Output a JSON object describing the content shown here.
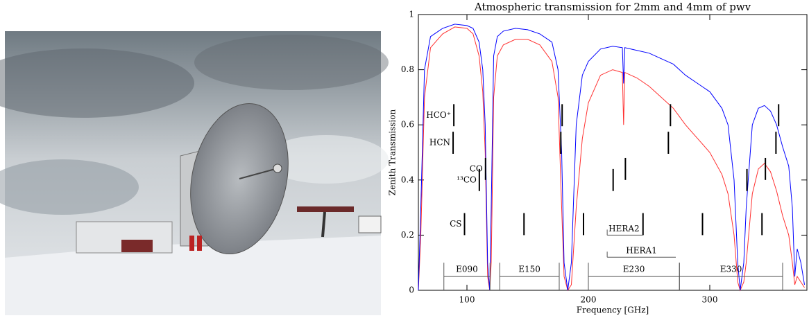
{
  "chart_data": {
    "type": "line",
    "title": "Atmospheric transmission for 2mm and 4mm of pwv",
    "x_label": "Frequency [GHz]",
    "y_label": "Zenith Transmission",
    "x": [
      60,
      62,
      65,
      70,
      80,
      90,
      100,
      105,
      110,
      113,
      115,
      117,
      118.75,
      120,
      122,
      125,
      130,
      140,
      150,
      160,
      170,
      175,
      178,
      180,
      183,
      186,
      190,
      195,
      200,
      210,
      220,
      228,
      229,
      230,
      240,
      250,
      260,
      270,
      280,
      290,
      300,
      310,
      315,
      320,
      323,
      325,
      328,
      330,
      335,
      340,
      345,
      350,
      355,
      360,
      365,
      368,
      370,
      372,
      375,
      378
    ],
    "series": [
      {
        "color": "#0000ff",
        "values": [
          0,
          0.3,
          0.8,
          0.92,
          0.95,
          0.965,
          0.96,
          0.95,
          0.9,
          0.8,
          0.6,
          0.1,
          0,
          0.3,
          0.85,
          0.92,
          0.94,
          0.95,
          0.945,
          0.93,
          0.9,
          0.8,
          0.5,
          0.1,
          0,
          0.1,
          0.6,
          0.78,
          0.83,
          0.875,
          0.885,
          0.88,
          0.75,
          0.88,
          0.87,
          0.86,
          0.84,
          0.82,
          0.78,
          0.75,
          0.72,
          0.66,
          0.6,
          0.4,
          0.1,
          0,
          0.1,
          0.3,
          0.6,
          0.66,
          0.67,
          0.65,
          0.6,
          0.52,
          0.45,
          0.3,
          0.05,
          0.15,
          0.1,
          0.02
        ]
      },
      {
        "color": "#ff3030",
        "values": [
          0,
          0.2,
          0.7,
          0.88,
          0.93,
          0.955,
          0.95,
          0.93,
          0.85,
          0.72,
          0.5,
          0.05,
          0,
          0.1,
          0.7,
          0.85,
          0.89,
          0.91,
          0.91,
          0.89,
          0.83,
          0.7,
          0.3,
          0.05,
          0,
          0.02,
          0.3,
          0.55,
          0.68,
          0.78,
          0.8,
          0.79,
          0.6,
          0.79,
          0.77,
          0.74,
          0.7,
          0.66,
          0.6,
          0.55,
          0.5,
          0.42,
          0.35,
          0.2,
          0.03,
          0,
          0.03,
          0.1,
          0.35,
          0.44,
          0.46,
          0.43,
          0.36,
          0.27,
          0.2,
          0.1,
          0.02,
          0.05,
          0.03,
          0.01
        ]
      }
    ],
    "xlim": [
      60,
      380
    ],
    "ylim": [
      0,
      1
    ],
    "xticks": [
      100,
      200,
      300
    ],
    "yticks": [
      0,
      0.2,
      0.4,
      0.6,
      0.8,
      1
    ],
    "lines": [
      {
        "label": "HCO⁺",
        "freqs": [
          89.2,
          178.4,
          267.6,
          356.7
        ]
      },
      {
        "label": "HCN",
        "freqs": [
          88.6,
          177.3,
          265.9,
          354.5
        ]
      },
      {
        "label": "CO",
        "freqs": [
          115.3,
          230.5,
          345.8
        ]
      },
      {
        "label": "¹³CO",
        "freqs": [
          110.2,
          220.4,
          330.6
        ]
      },
      {
        "label": "CS",
        "freqs": [
          98,
          147,
          196,
          245,
          294,
          343
        ]
      }
    ],
    "bands": [
      {
        "label": "E090",
        "range": [
          81,
          119
        ]
      },
      {
        "label": "E150",
        "range": [
          127,
          176
        ]
      },
      {
        "label": "E230",
        "range": [
          200,
          275
        ]
      },
      {
        "label": "E330",
        "range": [
          275,
          360
        ]
      },
      {
        "label": "HERA2",
        "range": [
          215.5,
          245
        ]
      },
      {
        "label": "HERA1",
        "range": [
          215.5,
          272
        ]
      }
    ]
  }
}
